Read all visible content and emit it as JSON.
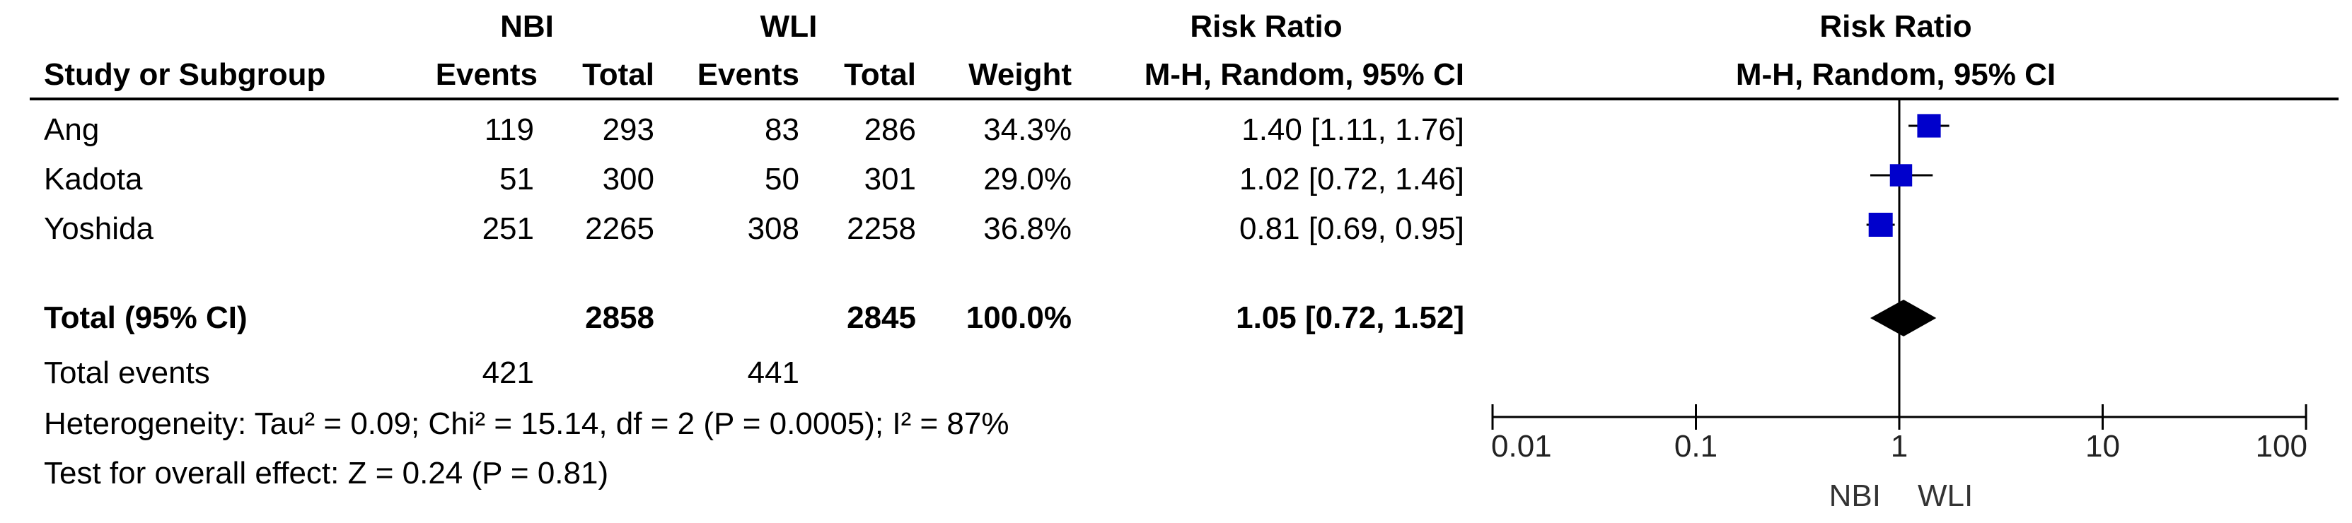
{
  "header": {
    "group1": "NBI",
    "group2": "WLI",
    "rr_text": "Risk Ratio",
    "rr_plot": "Risk Ratio",
    "study_col": "Study or Subgroup",
    "events1": "Events",
    "total1": "Total",
    "events2": "Events",
    "total2": "Total",
    "weight": "Weight",
    "method_text": "M-H, Random, 95% CI",
    "method_plot": "M-H, Random, 95% CI"
  },
  "studies": [
    {
      "name": "Ang",
      "e1": "119",
      "t1": "293",
      "e2": "83",
      "t2": "286",
      "weight": "34.3%",
      "ci_text": "1.40 [1.11, 1.76]"
    },
    {
      "name": "Kadota",
      "e1": "51",
      "t1": "300",
      "e2": "50",
      "t2": "301",
      "weight": "29.0%",
      "ci_text": "1.02 [0.72, 1.46]"
    },
    {
      "name": "Yoshida",
      "e1": "251",
      "t1": "2265",
      "e2": "308",
      "t2": "2258",
      "weight": "36.8%",
      "ci_text": "0.81 [0.69, 0.95]"
    }
  ],
  "total": {
    "label": "Total (95% CI)",
    "t1": "2858",
    "t2": "2845",
    "weight": "100.0%",
    "ci_text": "1.05 [0.72, 1.52]"
  },
  "total_events": {
    "label": "Total events",
    "e1": "421",
    "e2": "441"
  },
  "heterogeneity": "Heterogeneity: Tau² = 0.09; Chi² = 15.14, df = 2 (P = 0.0005); I² = 87%",
  "overall_effect": "Test for overall effect: Z = 0.24 (P = 0.81)",
  "axis": {
    "favours_left": "NBI",
    "favours_right": "WLI"
  },
  "colors": {
    "study_marker": "#0000cc",
    "diamond": "#000000"
  },
  "chart_data": {
    "type": "forest",
    "scale": "log",
    "xlim": [
      0.01,
      100
    ],
    "ticks": [
      0.01,
      0.1,
      1,
      10,
      100
    ],
    "tick_labels": [
      "0.01",
      "0.1",
      "1",
      "10",
      "100"
    ],
    "reference_line": 1,
    "studies": [
      {
        "name": "Ang",
        "rr": 1.4,
        "lo": 1.11,
        "hi": 1.76,
        "weight": 34.3
      },
      {
        "name": "Kadota",
        "rr": 1.02,
        "lo": 0.72,
        "hi": 1.46,
        "weight": 29.0
      },
      {
        "name": "Yoshida",
        "rr": 0.81,
        "lo": 0.69,
        "hi": 0.95,
        "weight": 36.8
      }
    ],
    "pooled": {
      "rr": 1.05,
      "lo": 0.72,
      "hi": 1.52
    }
  }
}
